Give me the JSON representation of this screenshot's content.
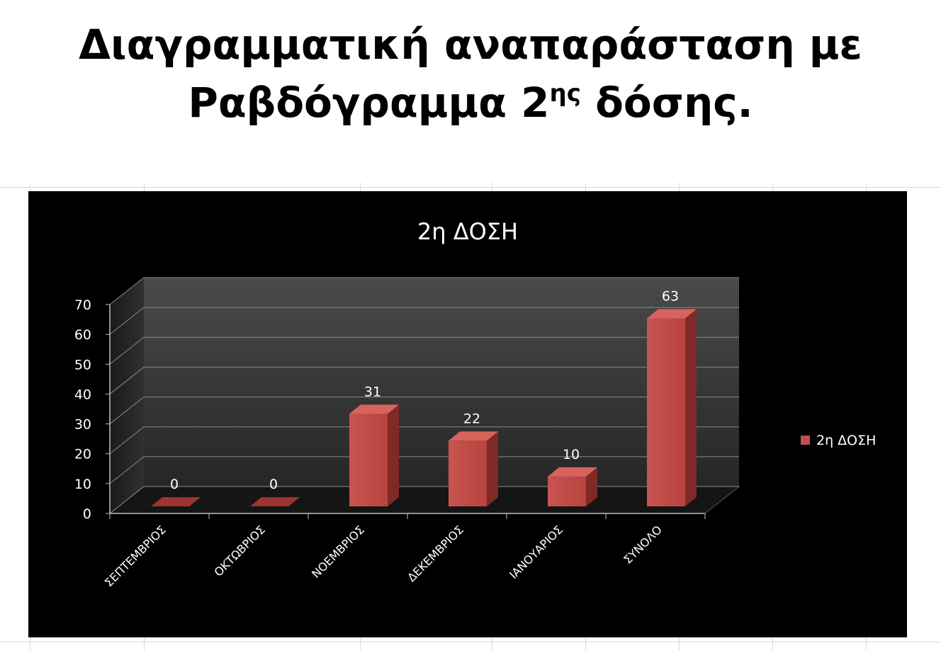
{
  "slide": {
    "title_line1": "Διαγραμματική αναπαράσταση  με",
    "title_line2_main": "Ραβδόγραμμα 2",
    "title_line2_sup": "ης",
    "title_line2_end": " δόσης."
  },
  "chart_data": {
    "type": "bar",
    "title": "2η ΔΟΣΗ",
    "categories": [
      "ΣΕΠΤΕΜΒΡΙΟΣ",
      "ΟΚΤΩΒΡΙΟΣ",
      "ΝΟΕΜΒΡΙΟΣ",
      "ΔΕΚΕΜΒΡΙΟΣ",
      "ΙΑΝΟΥΑΡΙΟΣ",
      "ΣΥΝΟΛΟ"
    ],
    "series": [
      {
        "name": "2η ΔΟΣΗ",
        "values": [
          0,
          0,
          31,
          22,
          10,
          63
        ],
        "color": "#c0504d"
      }
    ],
    "ylim": [
      0,
      70
    ],
    "yticks": [
      0,
      10,
      20,
      30,
      40,
      50,
      60,
      70
    ],
    "data_labels": true,
    "legend": "right",
    "grid": true,
    "style": "3d-column",
    "background": "#000000"
  }
}
